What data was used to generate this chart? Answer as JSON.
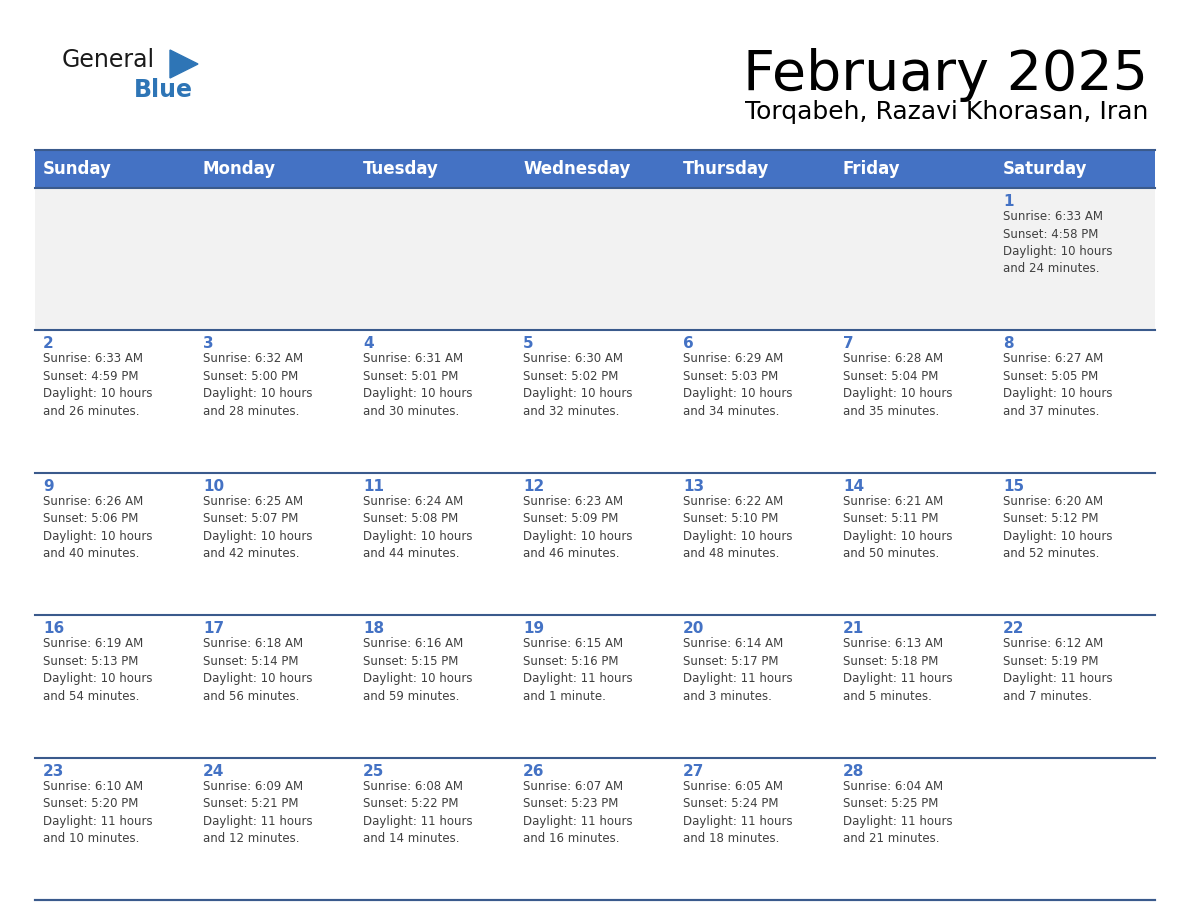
{
  "title": "February 2025",
  "subtitle": "Torqabeh, Razavi Khorasan, Iran",
  "header_color": "#4472C4",
  "header_text_color": "#FFFFFF",
  "cell_bg": "#FFFFFF",
  "first_row_bg": "#F2F2F2",
  "border_color": "#3A5A8C",
  "day_number_color": "#4472C4",
  "text_color": "#404040",
  "logo_black": "#1A1A1A",
  "logo_blue": "#2E75B6",
  "triangle_color": "#2E75B6",
  "days_of_week": [
    "Sunday",
    "Monday",
    "Tuesday",
    "Wednesday",
    "Thursday",
    "Friday",
    "Saturday"
  ],
  "calendar_data": [
    [
      {
        "day": "",
        "info": ""
      },
      {
        "day": "",
        "info": ""
      },
      {
        "day": "",
        "info": ""
      },
      {
        "day": "",
        "info": ""
      },
      {
        "day": "",
        "info": ""
      },
      {
        "day": "",
        "info": ""
      },
      {
        "day": "1",
        "info": "Sunrise: 6:33 AM\nSunset: 4:58 PM\nDaylight: 10 hours\nand 24 minutes."
      }
    ],
    [
      {
        "day": "2",
        "info": "Sunrise: 6:33 AM\nSunset: 4:59 PM\nDaylight: 10 hours\nand 26 minutes."
      },
      {
        "day": "3",
        "info": "Sunrise: 6:32 AM\nSunset: 5:00 PM\nDaylight: 10 hours\nand 28 minutes."
      },
      {
        "day": "4",
        "info": "Sunrise: 6:31 AM\nSunset: 5:01 PM\nDaylight: 10 hours\nand 30 minutes."
      },
      {
        "day": "5",
        "info": "Sunrise: 6:30 AM\nSunset: 5:02 PM\nDaylight: 10 hours\nand 32 minutes."
      },
      {
        "day": "6",
        "info": "Sunrise: 6:29 AM\nSunset: 5:03 PM\nDaylight: 10 hours\nand 34 minutes."
      },
      {
        "day": "7",
        "info": "Sunrise: 6:28 AM\nSunset: 5:04 PM\nDaylight: 10 hours\nand 35 minutes."
      },
      {
        "day": "8",
        "info": "Sunrise: 6:27 AM\nSunset: 5:05 PM\nDaylight: 10 hours\nand 37 minutes."
      }
    ],
    [
      {
        "day": "9",
        "info": "Sunrise: 6:26 AM\nSunset: 5:06 PM\nDaylight: 10 hours\nand 40 minutes."
      },
      {
        "day": "10",
        "info": "Sunrise: 6:25 AM\nSunset: 5:07 PM\nDaylight: 10 hours\nand 42 minutes."
      },
      {
        "day": "11",
        "info": "Sunrise: 6:24 AM\nSunset: 5:08 PM\nDaylight: 10 hours\nand 44 minutes."
      },
      {
        "day": "12",
        "info": "Sunrise: 6:23 AM\nSunset: 5:09 PM\nDaylight: 10 hours\nand 46 minutes."
      },
      {
        "day": "13",
        "info": "Sunrise: 6:22 AM\nSunset: 5:10 PM\nDaylight: 10 hours\nand 48 minutes."
      },
      {
        "day": "14",
        "info": "Sunrise: 6:21 AM\nSunset: 5:11 PM\nDaylight: 10 hours\nand 50 minutes."
      },
      {
        "day": "15",
        "info": "Sunrise: 6:20 AM\nSunset: 5:12 PM\nDaylight: 10 hours\nand 52 minutes."
      }
    ],
    [
      {
        "day": "16",
        "info": "Sunrise: 6:19 AM\nSunset: 5:13 PM\nDaylight: 10 hours\nand 54 minutes."
      },
      {
        "day": "17",
        "info": "Sunrise: 6:18 AM\nSunset: 5:14 PM\nDaylight: 10 hours\nand 56 minutes."
      },
      {
        "day": "18",
        "info": "Sunrise: 6:16 AM\nSunset: 5:15 PM\nDaylight: 10 hours\nand 59 minutes."
      },
      {
        "day": "19",
        "info": "Sunrise: 6:15 AM\nSunset: 5:16 PM\nDaylight: 11 hours\nand 1 minute."
      },
      {
        "day": "20",
        "info": "Sunrise: 6:14 AM\nSunset: 5:17 PM\nDaylight: 11 hours\nand 3 minutes."
      },
      {
        "day": "21",
        "info": "Sunrise: 6:13 AM\nSunset: 5:18 PM\nDaylight: 11 hours\nand 5 minutes."
      },
      {
        "day": "22",
        "info": "Sunrise: 6:12 AM\nSunset: 5:19 PM\nDaylight: 11 hours\nand 7 minutes."
      }
    ],
    [
      {
        "day": "23",
        "info": "Sunrise: 6:10 AM\nSunset: 5:20 PM\nDaylight: 11 hours\nand 10 minutes."
      },
      {
        "day": "24",
        "info": "Sunrise: 6:09 AM\nSunset: 5:21 PM\nDaylight: 11 hours\nand 12 minutes."
      },
      {
        "day": "25",
        "info": "Sunrise: 6:08 AM\nSunset: 5:22 PM\nDaylight: 11 hours\nand 14 minutes."
      },
      {
        "day": "26",
        "info": "Sunrise: 6:07 AM\nSunset: 5:23 PM\nDaylight: 11 hours\nand 16 minutes."
      },
      {
        "day": "27",
        "info": "Sunrise: 6:05 AM\nSunset: 5:24 PM\nDaylight: 11 hours\nand 18 minutes."
      },
      {
        "day": "28",
        "info": "Sunrise: 6:04 AM\nSunset: 5:25 PM\nDaylight: 11 hours\nand 21 minutes."
      },
      {
        "day": "",
        "info": ""
      }
    ]
  ],
  "figsize": [
    11.88,
    9.18
  ],
  "dpi": 100
}
